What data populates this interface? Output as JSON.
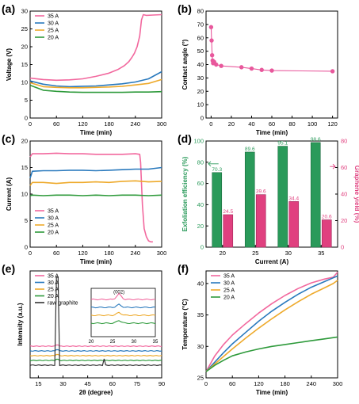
{
  "panels": [
    "(a)",
    "(b)",
    "(c)",
    "(d)",
    "(e)",
    "(f)"
  ],
  "colors": {
    "a35": "#f2689e",
    "a30": "#2979bd",
    "a25": "#eeaa2c",
    "a20": "#2e9a3b",
    "b": "#e8589c",
    "eff": "#2a9a5a",
    "yield": "#e0407f",
    "raw": "#333333"
  },
  "chart_data": [
    {
      "panel": "(a)",
      "type": "line",
      "xlabel": "Time (min)",
      "ylabel": "Voltage (V)",
      "xlim": [
        0,
        300
      ],
      "ylim": [
        0,
        30
      ],
      "xticks": [
        0,
        60,
        120,
        180,
        240,
        300
      ],
      "yticks": [
        0,
        5,
        10,
        15,
        20,
        25,
        30
      ],
      "legend": "top-left",
      "series": [
        {
          "name": "35 A",
          "x": [
            0,
            30,
            60,
            90,
            120,
            150,
            180,
            200,
            215,
            225,
            232,
            238,
            244,
            250,
            254,
            258,
            265,
            280,
            300
          ],
          "y": [
            11.2,
            10.8,
            10.6,
            10.7,
            11.0,
            11.7,
            12.6,
            13.6,
            14.7,
            15.8,
            17.0,
            18.2,
            20.0,
            23.0,
            27.5,
            29.0,
            28.8,
            28.9,
            29.0
          ]
        },
        {
          "name": "30 A",
          "x": [
            0,
            30,
            60,
            90,
            120,
            150,
            180,
            210,
            240,
            270,
            300
          ],
          "y": [
            10.4,
            9.5,
            9.0,
            8.8,
            8.9,
            9.0,
            9.3,
            9.6,
            10.1,
            11.0,
            13.0
          ]
        },
        {
          "name": "25 A",
          "x": [
            0,
            30,
            60,
            90,
            120,
            150,
            180,
            210,
            240,
            270,
            300
          ],
          "y": [
            9.9,
            8.8,
            8.6,
            8.5,
            8.5,
            8.6,
            8.7,
            8.9,
            9.3,
            9.7,
            10.8
          ]
        },
        {
          "name": "20 A",
          "x": [
            0,
            30,
            60,
            90,
            120,
            150,
            180,
            210,
            240,
            270,
            300
          ],
          "y": [
            9.2,
            7.8,
            7.5,
            7.3,
            7.2,
            7.2,
            7.2,
            7.2,
            7.3,
            7.3,
            7.4
          ]
        }
      ]
    },
    {
      "panel": "(b)",
      "type": "scatter",
      "xlabel": "Time (min)",
      "ylabel": "Contact angle (°)",
      "xlim": [
        -5,
        125
      ],
      "ylim": [
        0,
        80
      ],
      "xticks": [
        0,
        20,
        40,
        60,
        80,
        100,
        120
      ],
      "yticks": [
        0,
        10,
        20,
        30,
        40,
        50,
        60,
        70,
        80
      ],
      "series": [
        {
          "name": "",
          "x": [
            0,
            0.5,
            1,
            1.5,
            2,
            3,
            5,
            10,
            30,
            40,
            50,
            60,
            120
          ],
          "y": [
            68,
            58,
            47,
            43,
            41,
            42,
            40,
            39,
            38,
            37,
            36,
            35.5,
            35
          ]
        }
      ]
    },
    {
      "panel": "(c)",
      "type": "line",
      "xlabel": "Time (min)",
      "ylabel": "Current (A)",
      "xlim": [
        0,
        300
      ],
      "ylim": [
        0,
        20
      ],
      "xticks": [
        0,
        60,
        120,
        180,
        240,
        300
      ],
      "yticks": [
        0,
        5,
        10,
        15,
        20
      ],
      "legend": "bottom-left",
      "series": [
        {
          "name": "35 A",
          "x": [
            0,
            5,
            30,
            60,
            90,
            120,
            150,
            180,
            210,
            240,
            250,
            252,
            256,
            260,
            265,
            270,
            275,
            280
          ],
          "y": [
            17.0,
            17.6,
            17.6,
            17.7,
            17.6,
            17.6,
            17.5,
            17.5,
            17.5,
            17.6,
            17.5,
            16.0,
            8.0,
            3.5,
            2.0,
            1.2,
            1.0,
            1.0
          ]
        },
        {
          "name": "30 A",
          "x": [
            0,
            5,
            30,
            60,
            90,
            120,
            150,
            180,
            210,
            240,
            270,
            300
          ],
          "y": [
            13.0,
            14.3,
            14.4,
            14.4,
            14.5,
            14.5,
            14.4,
            14.5,
            14.6,
            14.7,
            14.7,
            15.0
          ]
        },
        {
          "name": "25 A",
          "x": [
            0,
            5,
            30,
            60,
            90,
            120,
            150,
            180,
            210,
            240,
            270,
            300
          ],
          "y": [
            11.6,
            12.2,
            12.2,
            12.0,
            12.2,
            12.2,
            12.3,
            12.2,
            12.4,
            12.5,
            12.3,
            12.4
          ]
        },
        {
          "name": "20 A",
          "x": [
            0,
            5,
            30,
            60,
            90,
            120,
            150,
            180,
            210,
            240,
            270,
            300
          ],
          "y": [
            9.7,
            9.8,
            9.7,
            9.8,
            9.8,
            9.7,
            9.8,
            9.7,
            9.8,
            9.8,
            9.7,
            9.8
          ]
        }
      ]
    },
    {
      "panel": "(d)",
      "type": "bar",
      "xlabel": "Current (A)",
      "ylabel": "Exfoliation efficiency (%)",
      "y2label": "Graphene yield (%)",
      "categories": [
        "20",
        "25",
        "30",
        "35"
      ],
      "ylim": [
        0,
        100
      ],
      "y2lim": [
        0,
        80
      ],
      "yticks": [
        0,
        20,
        40,
        60,
        80,
        100
      ],
      "y2ticks": [
        0,
        20,
        40,
        60,
        80
      ],
      "series": [
        {
          "name": "Exfoliation efficiency",
          "axis": "left",
          "values": [
            70.3,
            89.6,
            95.1,
            98.6
          ],
          "labels": [
            "70.3",
            "89.6",
            "95.1",
            "98.6"
          ]
        },
        {
          "name": "Graphene yield",
          "axis": "right",
          "values": [
            24.5,
            39.6,
            34.4,
            20.6
          ],
          "labels": [
            "24.5",
            "39.6",
            "34.4",
            "20.6"
          ]
        }
      ]
    },
    {
      "panel": "(e)",
      "type": "line",
      "xlabel": "2θ (degree)",
      "ylabel": "Intensity (a.u.)",
      "xlim": [
        10,
        90
      ],
      "xticks": [
        15,
        30,
        45,
        60,
        75,
        90
      ],
      "legend": "top-left",
      "inset": {
        "xlim": [
          20,
          35
        ],
        "xticks": [
          20,
          25,
          30,
          35
        ],
        "label": "(002)"
      },
      "series": [
        {
          "name": "35 A",
          "offset": 5.2
        },
        {
          "name": "30 A",
          "offset": 4.0
        },
        {
          "name": "25 A",
          "offset": 2.8
        },
        {
          "name": "20 A",
          "offset": 1.6
        },
        {
          "name": "raw graphite",
          "offset": 0.3
        }
      ]
    },
    {
      "panel": "(f)",
      "type": "line",
      "xlabel": "Time (min)",
      "ylabel": "Temperature (°C)",
      "xlim": [
        0,
        300
      ],
      "ylim": [
        25,
        42
      ],
      "xticks": [
        0,
        60,
        120,
        180,
        240,
        300
      ],
      "yticks": [
        25,
        30,
        35,
        40
      ],
      "legend": "top-left",
      "series": [
        {
          "name": "35 A",
          "x": [
            0,
            20,
            40,
            60,
            90,
            120,
            150,
            180,
            210,
            240,
            270,
            290,
            300
          ],
          "y": [
            26.0,
            28.5,
            30.3,
            31.8,
            33.6,
            35.3,
            36.8,
            38.1,
            39.2,
            40.1,
            40.7,
            41.0,
            41.8
          ]
        },
        {
          "name": "30 A",
          "x": [
            0,
            20,
            40,
            60,
            90,
            120,
            150,
            180,
            210,
            240,
            270,
            290,
            300
          ],
          "y": [
            26.0,
            27.5,
            29.0,
            30.4,
            32.2,
            34.0,
            35.6,
            37.0,
            38.3,
            39.4,
            40.3,
            40.9,
            41.2
          ]
        },
        {
          "name": "25 A",
          "x": [
            0,
            20,
            40,
            60,
            90,
            120,
            150,
            180,
            210,
            240,
            270,
            290,
            300
          ],
          "y": [
            26.0,
            27.2,
            28.4,
            29.6,
            31.3,
            32.9,
            34.4,
            35.8,
            37.1,
            38.3,
            39.3,
            40.0,
            40.5
          ]
        },
        {
          "name": "20 A",
          "x": [
            0,
            20,
            40,
            60,
            90,
            120,
            150,
            180,
            210,
            240,
            270,
            300
          ],
          "y": [
            26.0,
            27.0,
            27.8,
            28.5,
            29.1,
            29.6,
            30.0,
            30.3,
            30.6,
            30.9,
            31.2,
            31.5
          ]
        }
      ]
    }
  ]
}
